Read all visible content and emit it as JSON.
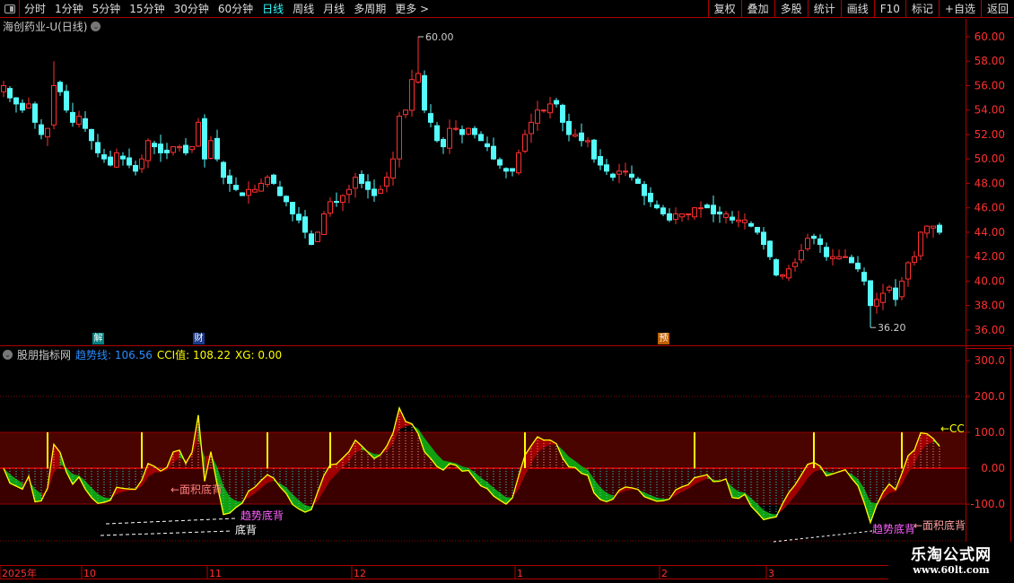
{
  "toolbar": {
    "periods": [
      "分时",
      "1分钟",
      "5分钟",
      "15分钟",
      "30分钟",
      "60分钟",
      "日线",
      "周线",
      "月线",
      "多周期",
      "更多 >"
    ],
    "active": "日线",
    "right_buttons": [
      "复权",
      "叠加",
      "多股",
      "统计",
      "画线",
      "F10",
      "标记",
      "+自选",
      "返回"
    ]
  },
  "stock": {
    "title": "海创药业-U(日线)"
  },
  "price_pane": {
    "axis_ticks": [
      "60.00",
      "58.00",
      "56.00",
      "54.00",
      "52.00",
      "50.00",
      "48.00",
      "46.00",
      "44.00",
      "42.00",
      "40.00",
      "38.00",
      "36.00"
    ],
    "high_label": "60.00",
    "low_label": "36.20",
    "event_tags": [
      {
        "text": "解",
        "color": "#008080",
        "index": 15
      },
      {
        "text": "财",
        "color": "#1a3a8a",
        "index": 31
      },
      {
        "text": "预",
        "color": "#c06000",
        "index": 105
      }
    ],
    "up_color": "#ff3030",
    "down_color": "#54fcfc",
    "closes": [
      56,
      55,
      54.5,
      54,
      54.5,
      53,
      52,
      52.5,
      56,
      55.5,
      54,
      53,
      53.5,
      52.5,
      51.5,
      50.5,
      50,
      49.5,
      50.5,
      50,
      49.5,
      49,
      50,
      51.5,
      51,
      50.5,
      50.5,
      51,
      51,
      50.5,
      51,
      53,
      50,
      51.5,
      50,
      48.5,
      48,
      47.5,
      47,
      47.5,
      47.5,
      48,
      48.5,
      48,
      47,
      46.5,
      45.5,
      45,
      44,
      43,
      44,
      45.5,
      46.5,
      46.5,
      47,
      47.5,
      48.5,
      48,
      47.5,
      47,
      47.5,
      48.5,
      50,
      53.5,
      54,
      56.5,
      57,
      54,
      53,
      51.5,
      51,
      52.5,
      52.5,
      52,
      52.5,
      52,
      51.5,
      51,
      50,
      49.5,
      49,
      49,
      50.5,
      52,
      53,
      54,
      54,
      54.5,
      54.5,
      53,
      52,
      52,
      51.5,
      51.5,
      50,
      49.5,
      49,
      48.5,
      49,
      49,
      48.5,
      48,
      47,
      46.5,
      46,
      45.5,
      45,
      45.5,
      45.5,
      45.5,
      46,
      46,
      46,
      45.5,
      45.5,
      45.5,
      45,
      45,
      45,
      44.5,
      44,
      43,
      42,
      40.5,
      40.5,
      41,
      41.5,
      42.5,
      43.5,
      43.5,
      43,
      42,
      42,
      42,
      42,
      41.5,
      41,
      40,
      38,
      38.5,
      39,
      39.5,
      38.5,
      40,
      41.5,
      42,
      44,
      44.5,
      44.5,
      44
    ]
  },
  "indicator": {
    "name": "股朋指标网",
    "trend_label": "趋势线: 106.56",
    "cci_label": "CCI值: 108.22",
    "xg_label": "XG: 0.00",
    "axis_ticks": [
      "300.0",
      "200.0",
      "100.0",
      "0.00",
      "-100.0"
    ],
    "signal_indices": [
      7,
      22,
      42,
      52,
      83,
      110,
      129,
      143
    ],
    "annotations": {
      "area_div_1": "←面积底背",
      "trend_div_1": "趋势底背",
      "div_1": "底背",
      "trend_div_2": "趋势底背",
      "area_div_2": "←面积底背",
      "cci_arrow": "←CC"
    }
  },
  "date_axis": {
    "labels": [
      {
        "text": "2025年",
        "index": 0
      },
      {
        "text": "10",
        "index": 13
      },
      {
        "text": "11",
        "index": 33
      },
      {
        "text": "12",
        "index": 56
      },
      {
        "text": "1",
        "index": 82
      },
      {
        "text": "2",
        "index": 105
      },
      {
        "text": "3",
        "index": 122
      }
    ]
  },
  "watermark": {
    "name": "乐淘公式网",
    "url": "www.60lt.com"
  }
}
